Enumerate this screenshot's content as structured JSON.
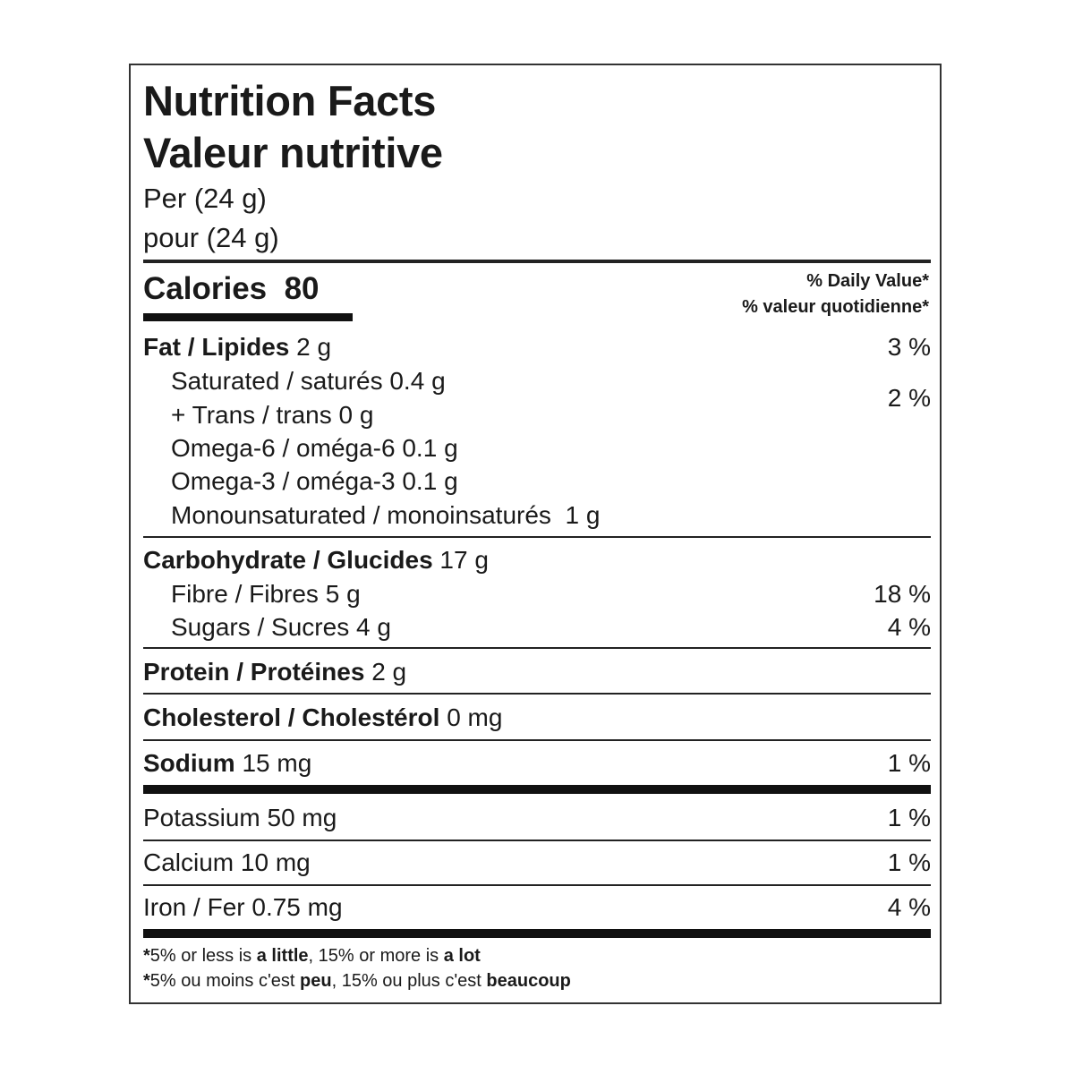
{
  "header": {
    "title_en": "Nutrition Facts",
    "title_fr": "Valeur nutritive",
    "serving_en": "Per (24 g)",
    "serving_fr": "pour (24 g)"
  },
  "calories": {
    "label": "Calories",
    "value": "80"
  },
  "dv_header": {
    "en": "% Daily Value*",
    "fr": "% valeur quotidienne*"
  },
  "nutrients": {
    "fat": {
      "label": "Fat / Lipides",
      "amount": "2 g",
      "dv": "3 %"
    },
    "saturated": {
      "label": "Saturated / saturés",
      "amount": "0.4 g"
    },
    "trans": {
      "label": "+ Trans / trans",
      "amount": "0 g"
    },
    "sat_trans_dv": "2 %",
    "omega6": {
      "label": "Omega-6 / oméga-6",
      "amount": "0.1 g"
    },
    "omega3": {
      "label": "Omega-3 / oméga-3",
      "amount": "0.1 g"
    },
    "mono": {
      "label": "Monounsaturated / monoinsaturés",
      "amount": "1 g"
    },
    "carb": {
      "label": "Carbohydrate / Glucides",
      "amount": "17 g"
    },
    "fibre": {
      "label": "Fibre / Fibres",
      "amount": "5 g",
      "dv": "18 %"
    },
    "sugars": {
      "label": "Sugars / Sucres",
      "amount": "4 g",
      "dv": "4 %"
    },
    "protein": {
      "label": "Protein / Protéines",
      "amount": "2 g"
    },
    "cholesterol": {
      "label": "Cholesterol / Cholestérol",
      "amount": "0 mg"
    },
    "sodium": {
      "label": "Sodium",
      "amount": "15 mg",
      "dv": "1 %"
    },
    "potassium": {
      "label": "Potassium",
      "amount": "50 mg",
      "dv": "1 %"
    },
    "calcium": {
      "label": "Calcium",
      "amount": "10 mg",
      "dv": "1 %"
    },
    "iron": {
      "label": "Iron / Fer",
      "amount": "0.75 mg",
      "dv": "4 %"
    }
  },
  "footnote": {
    "en": {
      "star": "*",
      "a": "5% or less is ",
      "b": "a little",
      "c": ", 15% or more is ",
      "d": "a lot"
    },
    "fr": {
      "star": "*",
      "a": "5% ou moins c'est ",
      "b": "peu",
      "c": ", 15% ou plus c'est ",
      "d": "beaucoup"
    }
  }
}
